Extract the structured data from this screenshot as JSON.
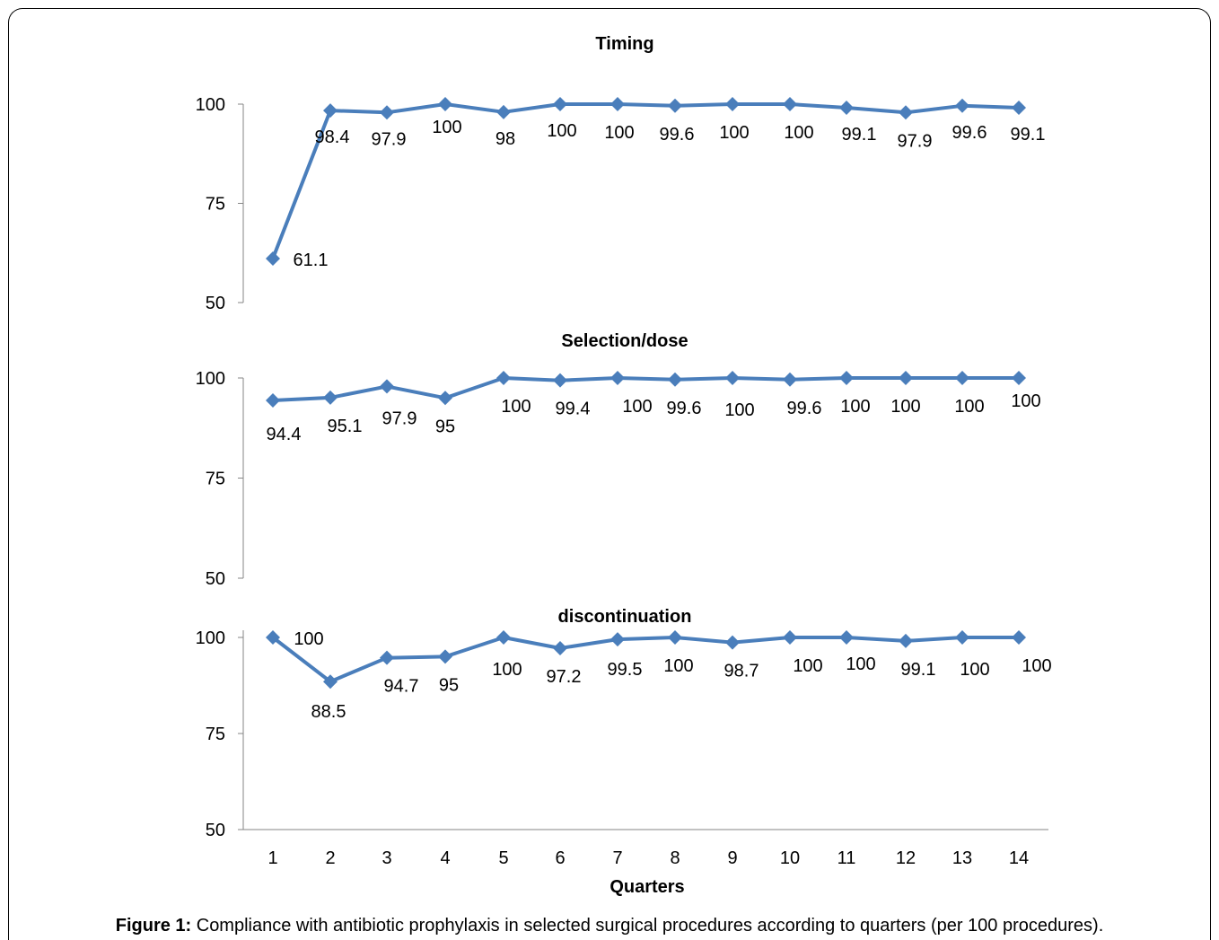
{
  "chart_data": [
    {
      "type": "line",
      "title": "Timing",
      "ylim": [
        50,
        100
      ],
      "yticks": [
        "100",
        "75",
        "50"
      ],
      "x": [
        1,
        2,
        3,
        4,
        5,
        6,
        7,
        8,
        9,
        10,
        11,
        12,
        13,
        14
      ],
      "values": [
        61.1,
        98.4,
        97.9,
        100,
        98,
        100,
        100,
        99.6,
        100,
        100,
        99.1,
        97.9,
        99.6,
        99.1
      ],
      "labels": [
        "61.1",
        "98.4",
        "97.9",
        "100",
        "98",
        "100",
        "100",
        "99.6",
        "100",
        "100",
        "99.1",
        "97.9",
        "99.6",
        "99.1"
      ]
    },
    {
      "type": "line",
      "title": "Selection/dose",
      "ylim": [
        50,
        100
      ],
      "yticks": [
        "100",
        "75",
        "50"
      ],
      "x": [
        1,
        2,
        3,
        4,
        5,
        6,
        7,
        8,
        9,
        10,
        11,
        12,
        13,
        14
      ],
      "values": [
        94.4,
        95.1,
        97.9,
        95,
        100,
        99.4,
        100,
        99.6,
        100,
        99.6,
        100,
        100,
        100,
        100
      ],
      "labels": [
        "94.4",
        "95.1",
        "97.9",
        "95",
        "100",
        "99.4",
        "100",
        "99.6",
        "100",
        "99.6",
        "100",
        "100",
        "100",
        "100"
      ]
    },
    {
      "type": "line",
      "title": "discontinuation",
      "ylim": [
        50,
        100
      ],
      "yticks": [
        "100",
        "75",
        "50"
      ],
      "x": [
        1,
        2,
        3,
        4,
        5,
        6,
        7,
        8,
        9,
        10,
        11,
        12,
        13,
        14
      ],
      "values": [
        100,
        88.5,
        94.7,
        95,
        100,
        97.2,
        99.5,
        100,
        98.7,
        100,
        100,
        99.1,
        100,
        100
      ],
      "labels": [
        "100",
        "88.5",
        "94.7",
        "95",
        "100",
        "97.2",
        "99.5",
        "100",
        "98.7",
        "100",
        "100",
        "99.1",
        "100",
        "100"
      ]
    }
  ],
  "xaxis": {
    "title": "Quarters",
    "ticks": [
      "1",
      "2",
      "3",
      "4",
      "5",
      "6",
      "7",
      "8",
      "9",
      "10",
      "11",
      "12",
      "13",
      "14"
    ]
  },
  "colors": {
    "series": "#4a7ebb",
    "axis": "#868686"
  },
  "caption": {
    "label": "Figure 1:",
    "text": " Compliance with antibiotic prophylaxis in selected surgical procedures according to quarters (per 100 procedures)."
  }
}
